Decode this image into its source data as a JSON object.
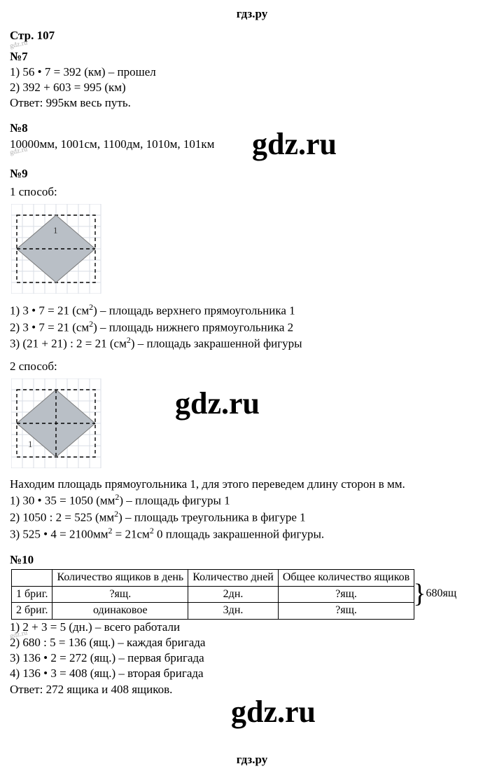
{
  "brand": "гдз.ру",
  "page_label": "Стр. 107",
  "task7": {
    "num": "№7",
    "l1": "1) 56 • 7 = 392 (км) – прошел",
    "l2": "2) 392 + 603 = 995 (км)",
    "ans": "Ответ: 995км весь путь."
  },
  "task8": {
    "num": "№8",
    "l1": "10000мм, 1001см, 1100дм, 1010м, 101км"
  },
  "task9": {
    "num": "№9",
    "way1": "1 способ:",
    "way1_l1_a": "1) 3 • 7 = 21 (см",
    "way1_l1_b": ") – площадь верхнего прямоугольника 1",
    "way1_l2_a": "2) 3 • 7 = 21 (см",
    "way1_l2_b": ") – площадь нижнего прямоугольника 2",
    "way1_l3_a": "3) (21 + 21) : 2 = 21 (см",
    "way1_l3_b": ") – площадь закрашенной фигуры",
    "way2": "2 способ:",
    "way2_intro": "Находим площадь прямоугольника 1, для этого переведем длину сторон в мм.",
    "way2_l1_a": "1) 30 • 35 = 1050 (мм",
    "way2_l1_b": ") – площадь фигуры 1",
    "way2_l2_a": "2) 1050 : 2 = 525 (мм",
    "way2_l2_b": ") – площадь треугольника в фигуре 1",
    "way2_l3_a": "3) 525 • 4 = 2100мм",
    "way2_l3_b": " = 21см",
    "way2_l3_c": " 0 площадь закрашенной фигуры."
  },
  "task10": {
    "num": "№10",
    "headers": [
      "",
      "Количество ящиков в день",
      "Количество дней",
      "Общее количество ящиков"
    ],
    "row1": [
      "1 бриг.",
      "?ящ.",
      "2дн.",
      "?ящ."
    ],
    "row2": [
      "2 бриг.",
      "одинаковое",
      "3дн.",
      "?ящ."
    ],
    "total_side": "680ящ",
    "l1": "1) 2 + 3 = 5 (дн.) – всего работали",
    "l2": "2) 680 : 5 = 136 (ящ.) – каждая бригада",
    "l3": "3) 136 • 2 = 272 (ящ.) – первая бригада",
    "l4": "4) 136 • 3 = 408 (ящ.) – вторая бригада",
    "ans": "Ответ: 272 ящика и 408 ящиков."
  },
  "watermark_text": "gdz.ru",
  "figure": {
    "grid_color": "#d8dee6",
    "diamond_fill": "#b9bfc6",
    "dash_color": "#000000",
    "label_color": "#3a3a3a",
    "cell": 16,
    "rect_w": 7,
    "rect_h": 6
  }
}
